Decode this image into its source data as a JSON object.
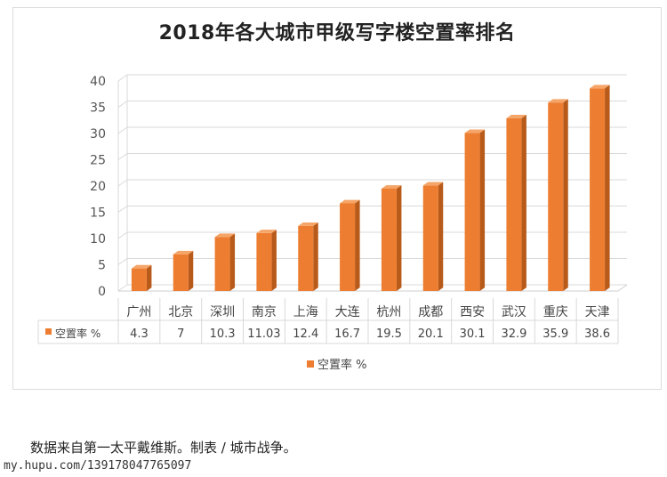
{
  "chart_data": {
    "type": "bar",
    "title": "2018年各大城市甲级写字楼空置率排名",
    "categories": [
      "广州",
      "北京",
      "深圳",
      "南京",
      "上海",
      "大连",
      "杭州",
      "成都",
      "西安",
      "武汉",
      "重庆",
      "天津"
    ],
    "series": [
      {
        "name": "空置率 %",
        "values": [
          4.3,
          7,
          10.3,
          11.03,
          12.4,
          16.7,
          19.5,
          20.1,
          30.1,
          32.9,
          35.9,
          38.6
        ],
        "value_labels": [
          "4.3",
          "7",
          "10.3",
          "11.03",
          "12.4",
          "16.7",
          "19.5",
          "20.1",
          "30.1",
          "32.9",
          "35.9",
          "38.6"
        ]
      }
    ],
    "ylim": [
      0,
      40
    ],
    "yticks": [
      0,
      5,
      10,
      15,
      20,
      25,
      30,
      35,
      40
    ],
    "grid": true,
    "data_table": true,
    "legend_position": "bottom",
    "colors": {
      "bar_front": "#ED7D31",
      "bar_side": "#B85A1A",
      "bar_top": "#F5A567"
    }
  },
  "caption": "数据来自第一太平戴维斯。制表 / 城市战争。",
  "watermark": "my.hupu.com/139178047765097"
}
